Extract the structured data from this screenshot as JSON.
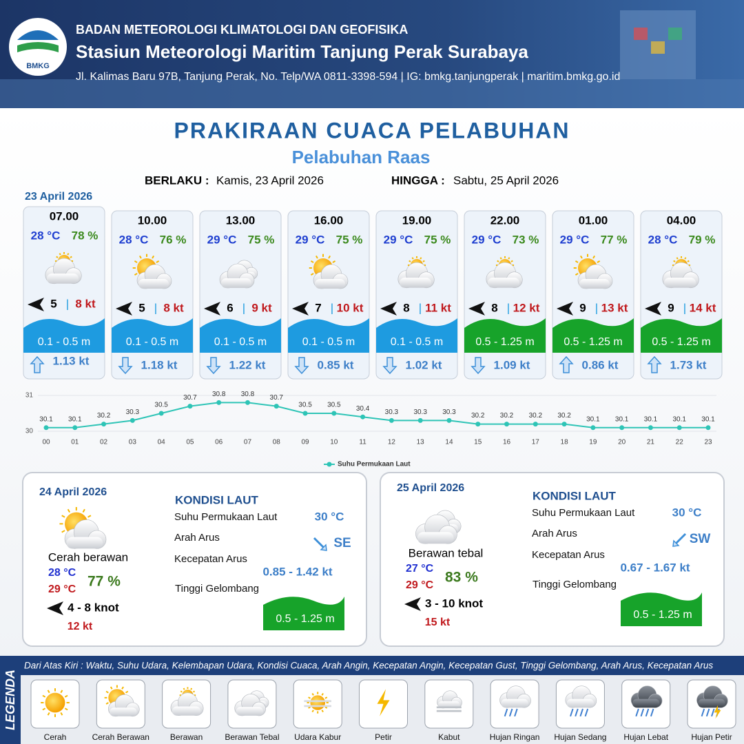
{
  "header": {
    "logo": "BMKG",
    "org": "BADAN METEOROLOGI KLIMATOLOGI DAN GEOFISIKA",
    "station": "Stasiun Meteorologi Maritim Tanjung Perak Surabaya",
    "address": "Jl. Kalimas Baru 97B, Tanjung Perak, No. Telp/WA 0811-3398-594 | IG: bmkg.tanjungperak | maritim.bmkg.go.id"
  },
  "title": "PRAKIRAAN CUACA PELABUHAN",
  "subtitle": "Pelabuhan Raas",
  "valid_from": {
    "label": "BERLAKU :",
    "value": "Kamis, 23 April 2026"
  },
  "valid_until": {
    "label": "HINGGA :",
    "value": "Sabtu, 25 April 2026"
  },
  "day1_date": "23 April 2026",
  "forecasts": [
    {
      "time": "07.00",
      "temp": "28 °C",
      "humidity": "78 %",
      "icon": "berawan",
      "wind": "5",
      "gust": "8 kt",
      "wave": "0.1 - 0.5 m",
      "wave_color": "#1e9be0",
      "current": "1.13 kt",
      "current_dir": "up"
    },
    {
      "time": "10.00",
      "temp": "28 °C",
      "humidity": "76 %",
      "icon": "cerah-berawan",
      "wind": "5",
      "gust": "8 kt",
      "wave": "0.1 - 0.5 m",
      "wave_color": "#1e9be0",
      "current": "1.18 kt",
      "current_dir": "down"
    },
    {
      "time": "13.00",
      "temp": "29 °C",
      "humidity": "75 %",
      "icon": "berawan-tebal",
      "wind": "6",
      "gust": "9 kt",
      "wave": "0.1 - 0.5 m",
      "wave_color": "#1e9be0",
      "current": "1.22 kt",
      "current_dir": "down"
    },
    {
      "time": "16.00",
      "temp": "29 °C",
      "humidity": "75 %",
      "icon": "cerah-berawan",
      "wind": "7",
      "gust": "10 kt",
      "wave": "0.1 - 0.5 m",
      "wave_color": "#1e9be0",
      "current": "0.85 kt",
      "current_dir": "down"
    },
    {
      "time": "19.00",
      "temp": "29 °C",
      "humidity": "75 %",
      "icon": "berawan",
      "wind": "8",
      "gust": "11 kt",
      "wave": "0.1 - 0.5 m",
      "wave_color": "#1e9be0",
      "current": "1.02 kt",
      "current_dir": "down"
    },
    {
      "time": "22.00",
      "temp": "29 °C",
      "humidity": "73 %",
      "icon": "berawan",
      "wind": "8",
      "gust": "12 kt",
      "wave": "0.5 - 1.25 m",
      "wave_color": "#17a32a",
      "current": "1.09 kt",
      "current_dir": "down"
    },
    {
      "time": "01.00",
      "temp": "29 °C",
      "humidity": "77 %",
      "icon": "cerah-berawan",
      "wind": "9",
      "gust": "13 kt",
      "wave": "0.5 - 1.25 m",
      "wave_color": "#17a32a",
      "current": "0.86 kt",
      "current_dir": "up"
    },
    {
      "time": "04.00",
      "temp": "28 °C",
      "humidity": "79 %",
      "icon": "berawan",
      "wind": "9",
      "gust": "14 kt",
      "wave": "0.5 - 1.25 m",
      "wave_color": "#17a32a",
      "current": "1.73 kt",
      "current_dir": "up"
    }
  ],
  "sst_chart": {
    "type": "line",
    "x": [
      "00",
      "01",
      "02",
      "03",
      "04",
      "05",
      "06",
      "07",
      "08",
      "09",
      "10",
      "11",
      "12",
      "13",
      "14",
      "15",
      "16",
      "17",
      "18",
      "19",
      "20",
      "21",
      "22",
      "23"
    ],
    "series": [
      {
        "name": "Suhu Permukaan Laut",
        "color": "#2ec4b6",
        "values": [
          30.1,
          30.1,
          30.2,
          30.3,
          30.5,
          30.7,
          30.8,
          30.8,
          30.7,
          30.5,
          30.5,
          30.4,
          30.3,
          30.3,
          30.3,
          30.2,
          30.2,
          30.2,
          30.2,
          30.1,
          30.1,
          30.1,
          30.1,
          30.1
        ]
      }
    ],
    "ylim": [
      30,
      31
    ],
    "yticks": [
      30,
      31
    ],
    "grid": true
  },
  "days": [
    {
      "date": "24 April 2026",
      "icon": "cerah-berawan",
      "condition": "Cerah berawan",
      "temp_min": "28 °C",
      "temp_max": "29 °C",
      "humidity": "77 %",
      "wind": "4 - 8 knot",
      "gust": "12 kt",
      "sea_heading": "KONDISI LAUT",
      "sst_label": "Suhu Permukaan Laut",
      "sst": "30 °C",
      "current_dir_label": "Arah Arus",
      "current_dir": "SE",
      "current_speed_label": "Kecepatan Arus",
      "current_speed": "0.85  - 1.42 kt",
      "wave_label": "Tinggi Gelombang",
      "wave": "0.5 - 1.25 m"
    },
    {
      "date": "25 April 2026",
      "icon": "berawan-tebal",
      "condition": "Berawan tebal",
      "temp_min": "27 °C",
      "temp_max": "29 °C",
      "humidity": "83 %",
      "wind": "3 - 10 knot",
      "gust": "15 kt",
      "sea_heading": "KONDISI LAUT",
      "sst_label": "Suhu Permukaan Laut",
      "sst": "30 °C",
      "current_dir_label": "Arah Arus",
      "current_dir": "SW",
      "current_speed_label": "Kecepatan Arus",
      "current_speed": "0.67 - 1.67 kt",
      "wave_label": "Tinggi Gelombang",
      "wave": "0.5 - 1.25 m"
    }
  ],
  "legend": {
    "title": "LEGENDA",
    "note": "Dari Atas Kiri : Waktu, Suhu Udara, Kelembapan Udara, Kondisi Cuaca, Arah Angin, Kecepatan Angin, Kecepatan Gust, Tinggi Gelombang, Arah Arus, Kecepatan Arus",
    "items": [
      {
        "label": "Cerah",
        "icon": "cerah"
      },
      {
        "label": "Cerah Berawan",
        "icon": "cerah-berawan"
      },
      {
        "label": "Berawan",
        "icon": "berawan"
      },
      {
        "label": "Berawan Tebal",
        "icon": "berawan-tebal"
      },
      {
        "label": "Udara Kabur",
        "icon": "udara-kabur"
      },
      {
        "label": "Petir",
        "icon": "petir"
      },
      {
        "label": "Kabut",
        "icon": "kabut"
      },
      {
        "label": "Hujan Ringan",
        "icon": "hujan-ringan"
      },
      {
        "label": "Hujan Sedang",
        "icon": "hujan-sedang"
      },
      {
        "label": "Hujan Lebat",
        "icon": "hujan-lebat"
      },
      {
        "label": "Hujan Petir",
        "icon": "hujan-petir"
      }
    ]
  }
}
